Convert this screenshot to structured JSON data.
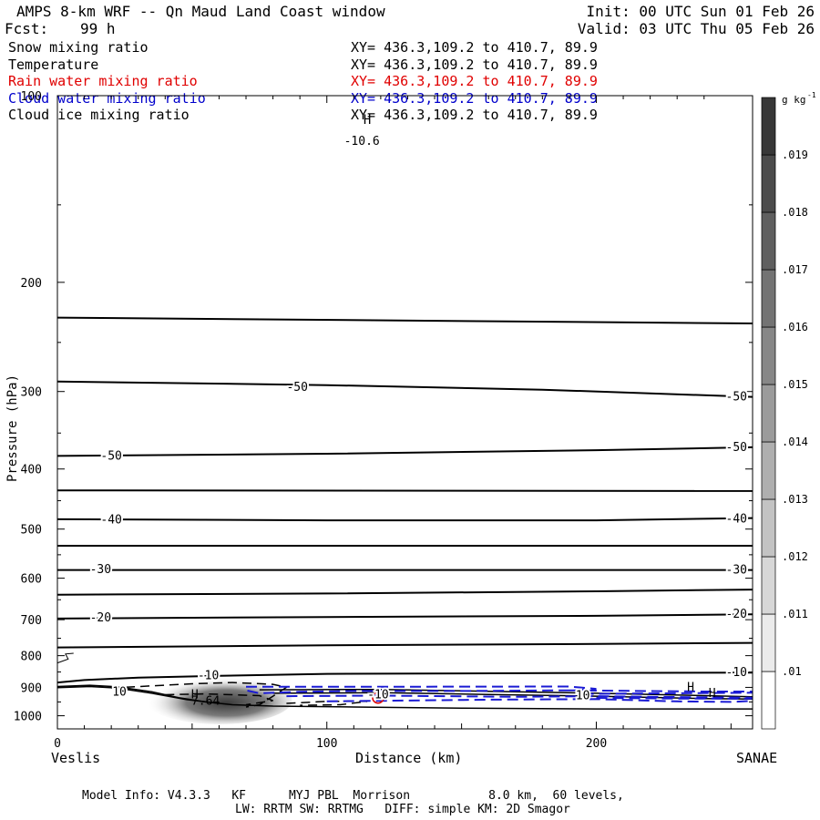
{
  "header": {
    "title": "AMPS 8-km WRF -- Qn Maud Land Coast window",
    "fcst_label": "Fcst:",
    "fcst_value": "99 h",
    "init": "Init: 00 UTC Sun 01 Feb 26",
    "valid": "Valid: 03 UTC Thu 05 Feb 26"
  },
  "fields": [
    {
      "name": "Snow mixing ratio",
      "xy": "XY= 436.3,109.2 to 410.7, 89.9",
      "color": "#000000"
    },
    {
      "name": "Temperature",
      "xy": "XY= 436.3,109.2 to 410.7, 89.9",
      "color": "#000000"
    },
    {
      "name": "Rain water mixing ratio",
      "xy": "XY= 436.3,109.2 to 410.7, 89.9",
      "color": "#e00000"
    },
    {
      "name": "Cloud water mixing ratio",
      "xy": "XY= 436.3,109.2 to 410.7, 89.9",
      "color": "#0000cc"
    },
    {
      "name": "Cloud ice mixing ratio",
      "xy": "XY= 436.3,109.2 to 410.7, 89.9",
      "color": "#000000"
    }
  ],
  "footer": {
    "line1": "Model Info: V4.3.3   KF      MYJ PBL  Morrison           8.0 km,  60 levels,",
    "line2": "LW: RRTM SW: RRTMG   DIFF: simple KM: 2D Smagor"
  },
  "chart_data": {
    "type": "cross-section",
    "xlabel": "Distance (km)",
    "ylabel": "Pressure (hPa)",
    "xlim": [
      0,
      258
    ],
    "ylim": [
      1050,
      100
    ],
    "x_ticks": [
      0,
      100,
      200
    ],
    "y_ticks": [
      100,
      200,
      300,
      400,
      500,
      600,
      700,
      800,
      900,
      1000
    ],
    "left_endpoint": "Veslis",
    "right_endpoint": "SANAE",
    "colorbar": {
      "unit": "g kg",
      "unit_exp": "-1",
      "levels": [
        ".01",
        ".011",
        ".012",
        ".013",
        ".014",
        ".015",
        ".016",
        ".017",
        ".018",
        ".019"
      ],
      "level_values": [
        0.01,
        0.011,
        0.012,
        0.013,
        0.014,
        0.015,
        0.016,
        0.017,
        0.018,
        0.019
      ]
    },
    "temperature_contour_labels": [
      "-50",
      "-50",
      "-50",
      "-50",
      "-40",
      "-40",
      "-30",
      "-30",
      "-20",
      "-20",
      "-10",
      "-10",
      "-10",
      "10",
      "10"
    ],
    "extrema_labels": [
      "H",
      "7.64",
      "H",
      "H",
      "H",
      "-10.6"
    ],
    "rain_label": "C"
  }
}
